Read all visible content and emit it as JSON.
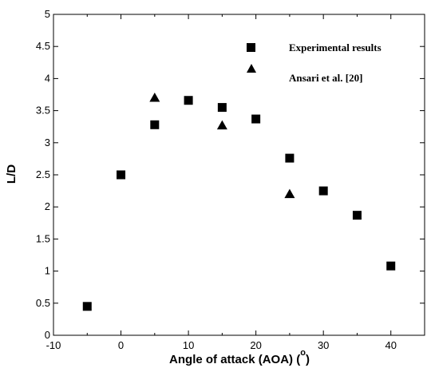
{
  "chart_data": {
    "type": "scatter",
    "xlabel": "Angle of attack (AOA) (",
    "xlabel_degree": "o",
    "xlabel_close": ")",
    "ylabel": "L/D",
    "xlim": [
      -10,
      45
    ],
    "ylim": [
      0,
      5
    ],
    "xticks": [
      -10,
      0,
      10,
      20,
      30,
      40
    ],
    "yticks": [
      0,
      0.5,
      1,
      1.5,
      2,
      2.5,
      3,
      3.5,
      4,
      4.5,
      5
    ],
    "grid": false,
    "legend_position": "top-right",
    "series": [
      {
        "name": "Experimental results",
        "marker": "square",
        "color": "#000000",
        "points": [
          {
            "x": -5,
            "y": 0.45
          },
          {
            "x": 0,
            "y": 2.5
          },
          {
            "x": 5,
            "y": 3.28
          },
          {
            "x": 10,
            "y": 3.66
          },
          {
            "x": 15,
            "y": 3.55
          },
          {
            "x": 20,
            "y": 3.37
          },
          {
            "x": 25,
            "y": 2.76
          },
          {
            "x": 30,
            "y": 2.25
          },
          {
            "x": 35,
            "y": 1.87
          },
          {
            "x": 40,
            "y": 1.08
          }
        ]
      },
      {
        "name": "Ansari et al. [20]",
        "marker": "triangle",
        "color": "#000000",
        "points": [
          {
            "x": 5,
            "y": 3.7
          },
          {
            "x": 15,
            "y": 3.27
          },
          {
            "x": 25,
            "y": 2.2
          }
        ]
      }
    ]
  }
}
